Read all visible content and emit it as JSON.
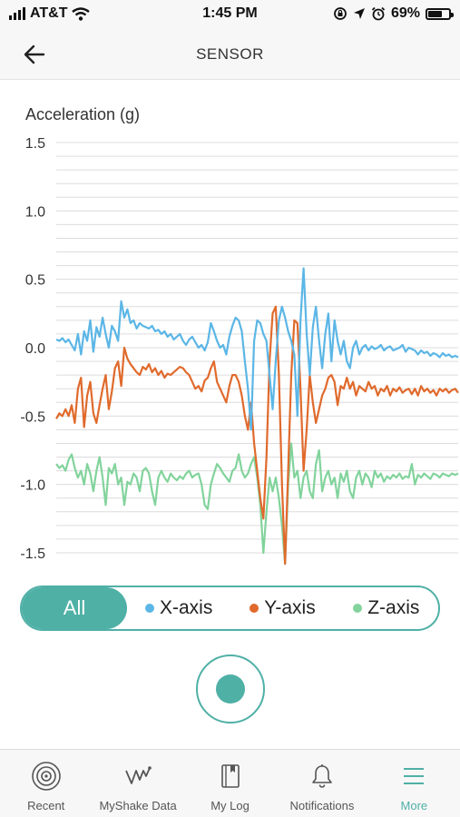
{
  "status_bar": {
    "carrier": "AT&T",
    "time": "1:45 PM",
    "battery": "69%",
    "battery_level": 0.69,
    "icons": [
      "signal-icon",
      "wifi-icon",
      "screen-lock-icon",
      "location-arrow-icon",
      "alarm-icon",
      "battery-icon"
    ]
  },
  "header": {
    "back_icon": "arrow-left-icon",
    "title": "SENSOR"
  },
  "chart_data": {
    "type": "line",
    "ylabel": "Acceleration (g)",
    "ylim": [
      -1.55,
      1.55
    ],
    "yticks": [
      "1.5",
      "1.0",
      "0.5",
      "0.0",
      "-0.5",
      "-1.0",
      "-1.5"
    ],
    "ytick_values": [
      1.5,
      1.0,
      0.5,
      0.0,
      -0.5,
      -1.0,
      -1.5
    ],
    "grid": true,
    "x": [
      0,
      1,
      2,
      3,
      4,
      5,
      6,
      7,
      8,
      9,
      10,
      11,
      12,
      13,
      14,
      15,
      16,
      17,
      18,
      19,
      20,
      21,
      22,
      23,
      24,
      25,
      26,
      27,
      28,
      29,
      30,
      31,
      32,
      33,
      34,
      35,
      36,
      37,
      38,
      39,
      40,
      41,
      42,
      43,
      44,
      45,
      46,
      47,
      48,
      49,
      50,
      51,
      52,
      53,
      54,
      55,
      56,
      57,
      58,
      59,
      60,
      61,
      62,
      63,
      64,
      65,
      66,
      67,
      68,
      69,
      70,
      71,
      72,
      73,
      74,
      75,
      76,
      77,
      78,
      79,
      80,
      81,
      82,
      83,
      84,
      85,
      86,
      87,
      88,
      89,
      90,
      91,
      92,
      93,
      94,
      95,
      96,
      97,
      98,
      99,
      100,
      101,
      102,
      103,
      104,
      105,
      106,
      107,
      108,
      109,
      110,
      111,
      112,
      113,
      114,
      115,
      116,
      117,
      118,
      119,
      120,
      121,
      122,
      123,
      124,
      125,
      126,
      127,
      128,
      129,
      130
    ],
    "series": [
      {
        "name": "X-axis",
        "color": "#5bb6e6",
        "values": [
          0.06,
          0.05,
          0.07,
          0.04,
          0.06,
          0.02,
          -0.02,
          0.1,
          -0.05,
          0.12,
          0.05,
          0.2,
          -0.03,
          0.15,
          0.08,
          0.22,
          0.1,
          0.0,
          0.16,
          0.12,
          0.05,
          0.34,
          0.22,
          0.28,
          0.18,
          0.2,
          0.14,
          0.18,
          0.16,
          0.15,
          0.14,
          0.16,
          0.12,
          0.13,
          0.1,
          0.12,
          0.08,
          0.1,
          0.06,
          0.08,
          0.1,
          0.05,
          0.02,
          0.06,
          0.08,
          0.04,
          0.0,
          0.02,
          -0.02,
          0.04,
          0.18,
          0.12,
          0.05,
          0.0,
          0.02,
          -0.05,
          0.08,
          0.16,
          0.22,
          0.2,
          0.12,
          -0.1,
          -0.3,
          -0.6,
          0.05,
          0.2,
          0.18,
          0.1,
          0.05,
          -0.2,
          -0.45,
          -0.1,
          0.2,
          0.3,
          0.22,
          0.12,
          0.05,
          -0.05,
          -0.5,
          0.2,
          0.58,
          0.1,
          -0.2,
          0.15,
          0.3,
          0.05,
          -0.15,
          0.1,
          0.25,
          -0.1,
          0.2,
          0.05,
          -0.05,
          0.05,
          -0.1,
          -0.15,
          0.0,
          0.05,
          -0.05,
          0.0,
          0.02,
          -0.02,
          0.01,
          -0.01,
          0.0,
          0.02,
          -0.02,
          0.0,
          0.01,
          -0.02,
          -0.01,
          0.0,
          0.02,
          -0.03,
          0.0,
          -0.01,
          -0.02,
          -0.05,
          -0.02,
          -0.04,
          -0.03,
          -0.06,
          -0.04,
          -0.05,
          -0.07,
          -0.04,
          -0.06,
          -0.05,
          -0.07,
          -0.06,
          -0.07
        ]
      },
      {
        "name": "Y-axis",
        "color": "#e06a2c",
        "values": [
          -0.52,
          -0.48,
          -0.5,
          -0.45,
          -0.5,
          -0.42,
          -0.55,
          -0.3,
          -0.22,
          -0.58,
          -0.35,
          -0.25,
          -0.48,
          -0.55,
          -0.42,
          -0.3,
          -0.2,
          -0.45,
          -0.32,
          -0.15,
          -0.1,
          -0.28,
          0.0,
          -0.08,
          -0.12,
          -0.15,
          -0.18,
          -0.2,
          -0.14,
          -0.16,
          -0.12,
          -0.18,
          -0.15,
          -0.2,
          -0.17,
          -0.22,
          -0.19,
          -0.2,
          -0.18,
          -0.16,
          -0.14,
          -0.15,
          -0.18,
          -0.2,
          -0.25,
          -0.3,
          -0.28,
          -0.32,
          -0.24,
          -0.22,
          -0.15,
          -0.1,
          -0.25,
          -0.3,
          -0.35,
          -0.4,
          -0.28,
          -0.2,
          -0.2,
          -0.25,
          -0.35,
          -0.5,
          -0.6,
          -0.4,
          -0.7,
          -0.9,
          -1.1,
          -1.25,
          -0.8,
          -0.1,
          0.25,
          0.3,
          -0.2,
          -1.0,
          -1.58,
          -0.9,
          -0.2,
          0.2,
          0.18,
          -0.3,
          -0.9,
          -0.6,
          -0.2,
          -0.4,
          -0.55,
          -0.45,
          -0.35,
          -0.3,
          -0.22,
          -0.2,
          -0.25,
          -0.42,
          -0.28,
          -0.3,
          -0.22,
          -0.3,
          -0.25,
          -0.35,
          -0.28,
          -0.3,
          -0.32,
          -0.25,
          -0.3,
          -0.28,
          -0.35,
          -0.3,
          -0.32,
          -0.28,
          -0.35,
          -0.3,
          -0.32,
          -0.29,
          -0.33,
          -0.31,
          -0.3,
          -0.34,
          -0.3,
          -0.35,
          -0.28,
          -0.32,
          -0.3,
          -0.33,
          -0.31,
          -0.35,
          -0.3,
          -0.32,
          -0.3,
          -0.33,
          -0.31,
          -0.3,
          -0.33
        ]
      },
      {
        "name": "Z-axis",
        "color": "#82d39c",
        "values": [
          -0.85,
          -0.88,
          -0.86,
          -0.9,
          -0.82,
          -0.78,
          -0.88,
          -0.95,
          -0.9,
          -1.0,
          -0.85,
          -0.92,
          -1.05,
          -0.9,
          -0.8,
          -0.95,
          -1.15,
          -0.88,
          -0.92,
          -0.85,
          -1.0,
          -0.95,
          -1.15,
          -0.98,
          -1.0,
          -0.92,
          -0.95,
          -1.05,
          -0.9,
          -0.88,
          -0.92,
          -1.05,
          -1.15,
          -0.95,
          -0.9,
          -0.95,
          -0.98,
          -0.92,
          -0.95,
          -0.97,
          -0.94,
          -0.96,
          -0.92,
          -0.9,
          -0.95,
          -0.93,
          -0.92,
          -1.0,
          -1.15,
          -1.18,
          -1.0,
          -0.92,
          -0.85,
          -0.88,
          -0.92,
          -0.95,
          -0.98,
          -0.9,
          -0.88,
          -0.78,
          -0.9,
          -0.95,
          -0.92,
          -0.85,
          -0.8,
          -0.95,
          -1.15,
          -1.5,
          -1.2,
          -0.95,
          -1.05,
          -0.95,
          -1.1,
          -1.3,
          -1.6,
          -1.0,
          -0.7,
          -0.95,
          -0.9,
          -1.1,
          -0.95,
          -0.9,
          -1.05,
          -1.1,
          -0.85,
          -0.75,
          -1.05,
          -0.95,
          -0.9,
          -1.0,
          -0.95,
          -1.1,
          -0.92,
          -0.98,
          -0.9,
          -1.05,
          -1.1,
          -0.95,
          -0.9,
          -1.0,
          -0.92,
          -0.95,
          -1.02,
          -0.9,
          -0.95,
          -0.92,
          -0.98,
          -0.94,
          -0.96,
          -0.93,
          -0.95,
          -0.92,
          -0.96,
          -0.94,
          -0.95,
          -0.85,
          -1.0,
          -0.93,
          -0.95,
          -0.92,
          -0.94,
          -0.96,
          -0.92,
          -0.93,
          -0.95,
          -0.92,
          -0.93,
          -0.94,
          -0.92,
          -0.93,
          -0.92
        ]
      }
    ]
  },
  "filter": {
    "all_label": "All",
    "x_label": "X-axis",
    "y_label": "Y-axis",
    "z_label": "Z-axis"
  },
  "record_button": {
    "icon": "record-icon"
  },
  "tabs": [
    {
      "label": "Recent",
      "icon": "target-icon",
      "active": false
    },
    {
      "label": "MyShake Data",
      "icon": "seismograph-icon",
      "active": false
    },
    {
      "label": "My Log",
      "icon": "book-icon",
      "active": false
    },
    {
      "label": "Notifications",
      "icon": "bell-icon",
      "active": false
    },
    {
      "label": "More",
      "icon": "menu-icon",
      "active": true
    }
  ],
  "colors": {
    "accent": "#4fb0a6",
    "x_series": "#5bb6e6",
    "y_series": "#e06a2c",
    "z_series": "#82d39c"
  }
}
